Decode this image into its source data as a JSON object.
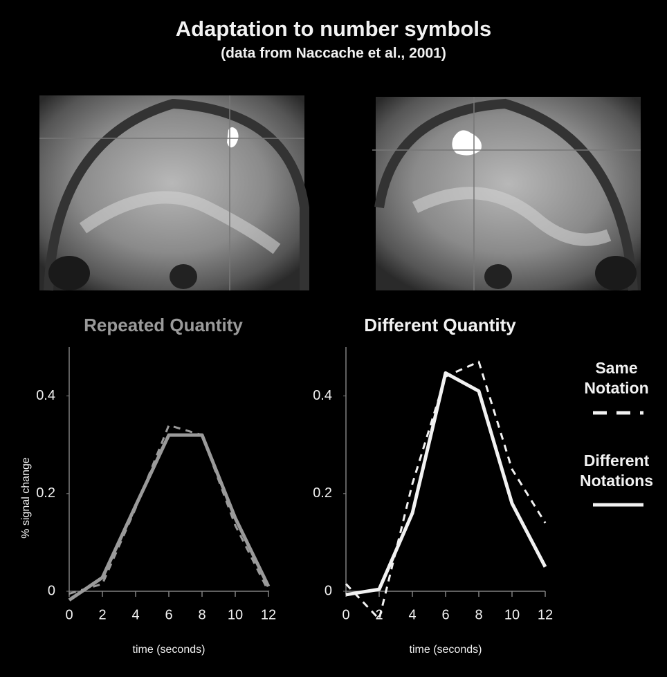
{
  "figure": {
    "title": "Adaptation to number symbols",
    "subtitle": "(data from Naccache et al., 2001)"
  },
  "chart_data": [
    {
      "type": "line",
      "title": "Repeated Quantity",
      "title_color": "#9a9a9a",
      "x_label": "time (seconds)",
      "y_label": "% signal change",
      "x": [
        0,
        2,
        4,
        6,
        8,
        10,
        12
      ],
      "series": [
        {
          "name": "Same Notation",
          "color": "#9a9a9a",
          "style": "dashed",
          "values": [
            -0.005,
            0.015,
            0.17,
            0.34,
            0.32,
            0.135,
            0.0
          ]
        },
        {
          "name": "Different Notations",
          "color": "#9a9a9a",
          "style": "solid",
          "values": [
            -0.018,
            0.028,
            0.175,
            0.32,
            0.32,
            0.15,
            0.01
          ]
        }
      ],
      "xlim": [
        0,
        12
      ],
      "xticks": [
        0,
        2,
        4,
        6,
        8,
        10,
        12
      ],
      "ylim": [
        0,
        0.5
      ],
      "yticks": [
        0,
        0.2,
        0.4
      ]
    },
    {
      "type": "line",
      "title": "Different Quantity",
      "title_color": "#f2f2f2",
      "x_label": "time (seconds)",
      "x": [
        0,
        2,
        4,
        6,
        8,
        10,
        12
      ],
      "series": [
        {
          "name": "Same Notation",
          "color": "#f2f2f2",
          "style": "dashed",
          "values": [
            0.015,
            -0.057,
            0.22,
            0.44,
            0.47,
            0.25,
            0.14
          ]
        },
        {
          "name": "Different Notations",
          "color": "#f2f2f2",
          "style": "solid",
          "values": [
            -0.007,
            0.004,
            0.16,
            0.447,
            0.41,
            0.18,
            0.05
          ]
        }
      ],
      "xlim": [
        0,
        12
      ],
      "xticks": [
        0,
        2,
        4,
        6,
        8,
        10,
        12
      ],
      "ylim": [
        0,
        0.5
      ],
      "yticks": [
        0,
        0.2,
        0.4
      ],
      "legend": "right"
    }
  ]
}
